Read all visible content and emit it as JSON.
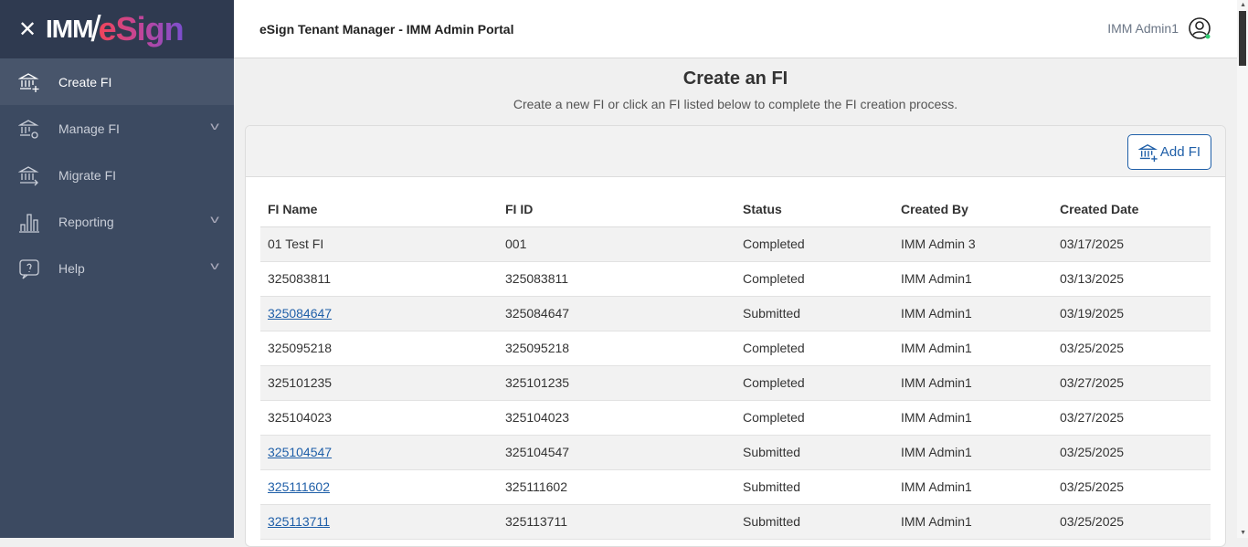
{
  "logo": {
    "part1": "IMM",
    "part2": "eSign"
  },
  "sidebar": {
    "items": [
      {
        "label": "Create FI",
        "icon": "bank-plus-icon",
        "active": true,
        "expandable": false
      },
      {
        "label": "Manage FI",
        "icon": "bank-gear-icon",
        "expandable": true
      },
      {
        "label": "Migrate FI",
        "icon": "bank-arrow-icon",
        "expandable": false
      },
      {
        "label": "Reporting",
        "icon": "bar-chart-icon",
        "expandable": true
      },
      {
        "label": "Help",
        "icon": "help-bubble-icon",
        "expandable": true
      }
    ]
  },
  "header": {
    "title": "eSign Tenant Manager - IMM Admin Portal",
    "user": "IMM Admin1"
  },
  "page": {
    "title": "Create an FI",
    "subtitle": "Create a new FI or click an FI listed below to complete the FI creation process.",
    "add_label": "Add FI"
  },
  "table": {
    "columns": [
      "FI Name",
      "FI ID",
      "Status",
      "Created By",
      "Created Date"
    ],
    "rows": [
      {
        "name": "01 Test FI",
        "id": "001",
        "status": "Completed",
        "by": "IMM Admin 3",
        "date": "03/17/2025",
        "link": false
      },
      {
        "name": "325083811",
        "id": "325083811",
        "status": "Completed",
        "by": "IMM Admin1",
        "date": "03/13/2025",
        "link": false
      },
      {
        "name": "325084647",
        "id": "325084647",
        "status": "Submitted",
        "by": "IMM Admin1",
        "date": "03/19/2025",
        "link": true
      },
      {
        "name": "325095218",
        "id": "325095218",
        "status": "Completed",
        "by": "IMM Admin1",
        "date": "03/25/2025",
        "link": false
      },
      {
        "name": "325101235",
        "id": "325101235",
        "status": "Completed",
        "by": "IMM Admin1",
        "date": "03/27/2025",
        "link": false
      },
      {
        "name": "325104023",
        "id": "325104023",
        "status": "Completed",
        "by": "IMM Admin1",
        "date": "03/27/2025",
        "link": false
      },
      {
        "name": "325104547",
        "id": "325104547",
        "status": "Submitted",
        "by": "IMM Admin1",
        "date": "03/25/2025",
        "link": true
      },
      {
        "name": "325111602",
        "id": "325111602",
        "status": "Submitted",
        "by": "IMM Admin1",
        "date": "03/25/2025",
        "link": true
      },
      {
        "name": "325113711",
        "id": "325113711",
        "status": "Submitted",
        "by": "IMM Admin1",
        "date": "03/25/2025",
        "link": true
      }
    ]
  }
}
